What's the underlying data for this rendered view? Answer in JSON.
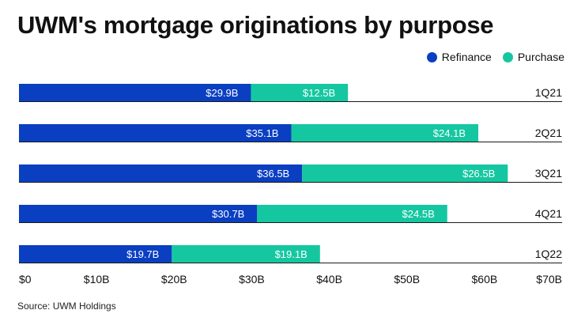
{
  "chart_data": {
    "type": "bar",
    "orientation": "horizontal",
    "stacked": true,
    "title": "UWM's mortgage originations by purpose",
    "source": "Source: UWM Holdings",
    "categories": [
      "1Q21",
      "2Q21",
      "3Q21",
      "4Q21",
      "1Q22"
    ],
    "series": [
      {
        "name": "Refinance",
        "color": "#0a3fc2",
        "values": [
          29.9,
          35.1,
          36.5,
          30.7,
          19.7
        ],
        "labels": [
          "$29.9B",
          "$35.1B",
          "$36.5B",
          "$30.7B",
          "$19.7B"
        ]
      },
      {
        "name": "Purchase",
        "color": "#15c7a0",
        "values": [
          12.5,
          24.1,
          26.5,
          24.5,
          19.1
        ],
        "labels": [
          "$12.5B",
          "$24.1B",
          "$26.5B",
          "$24.5B",
          "$19.1B"
        ]
      }
    ],
    "xlim": [
      0,
      70
    ],
    "xticks": [
      0,
      10,
      20,
      30,
      40,
      50,
      60,
      70
    ],
    "xtick_labels": [
      "$0",
      "$10B",
      "$20B",
      "$30B",
      "$40B",
      "$50B",
      "$60B",
      "$70B"
    ],
    "legend_position": "top-right",
    "grid": false
  }
}
